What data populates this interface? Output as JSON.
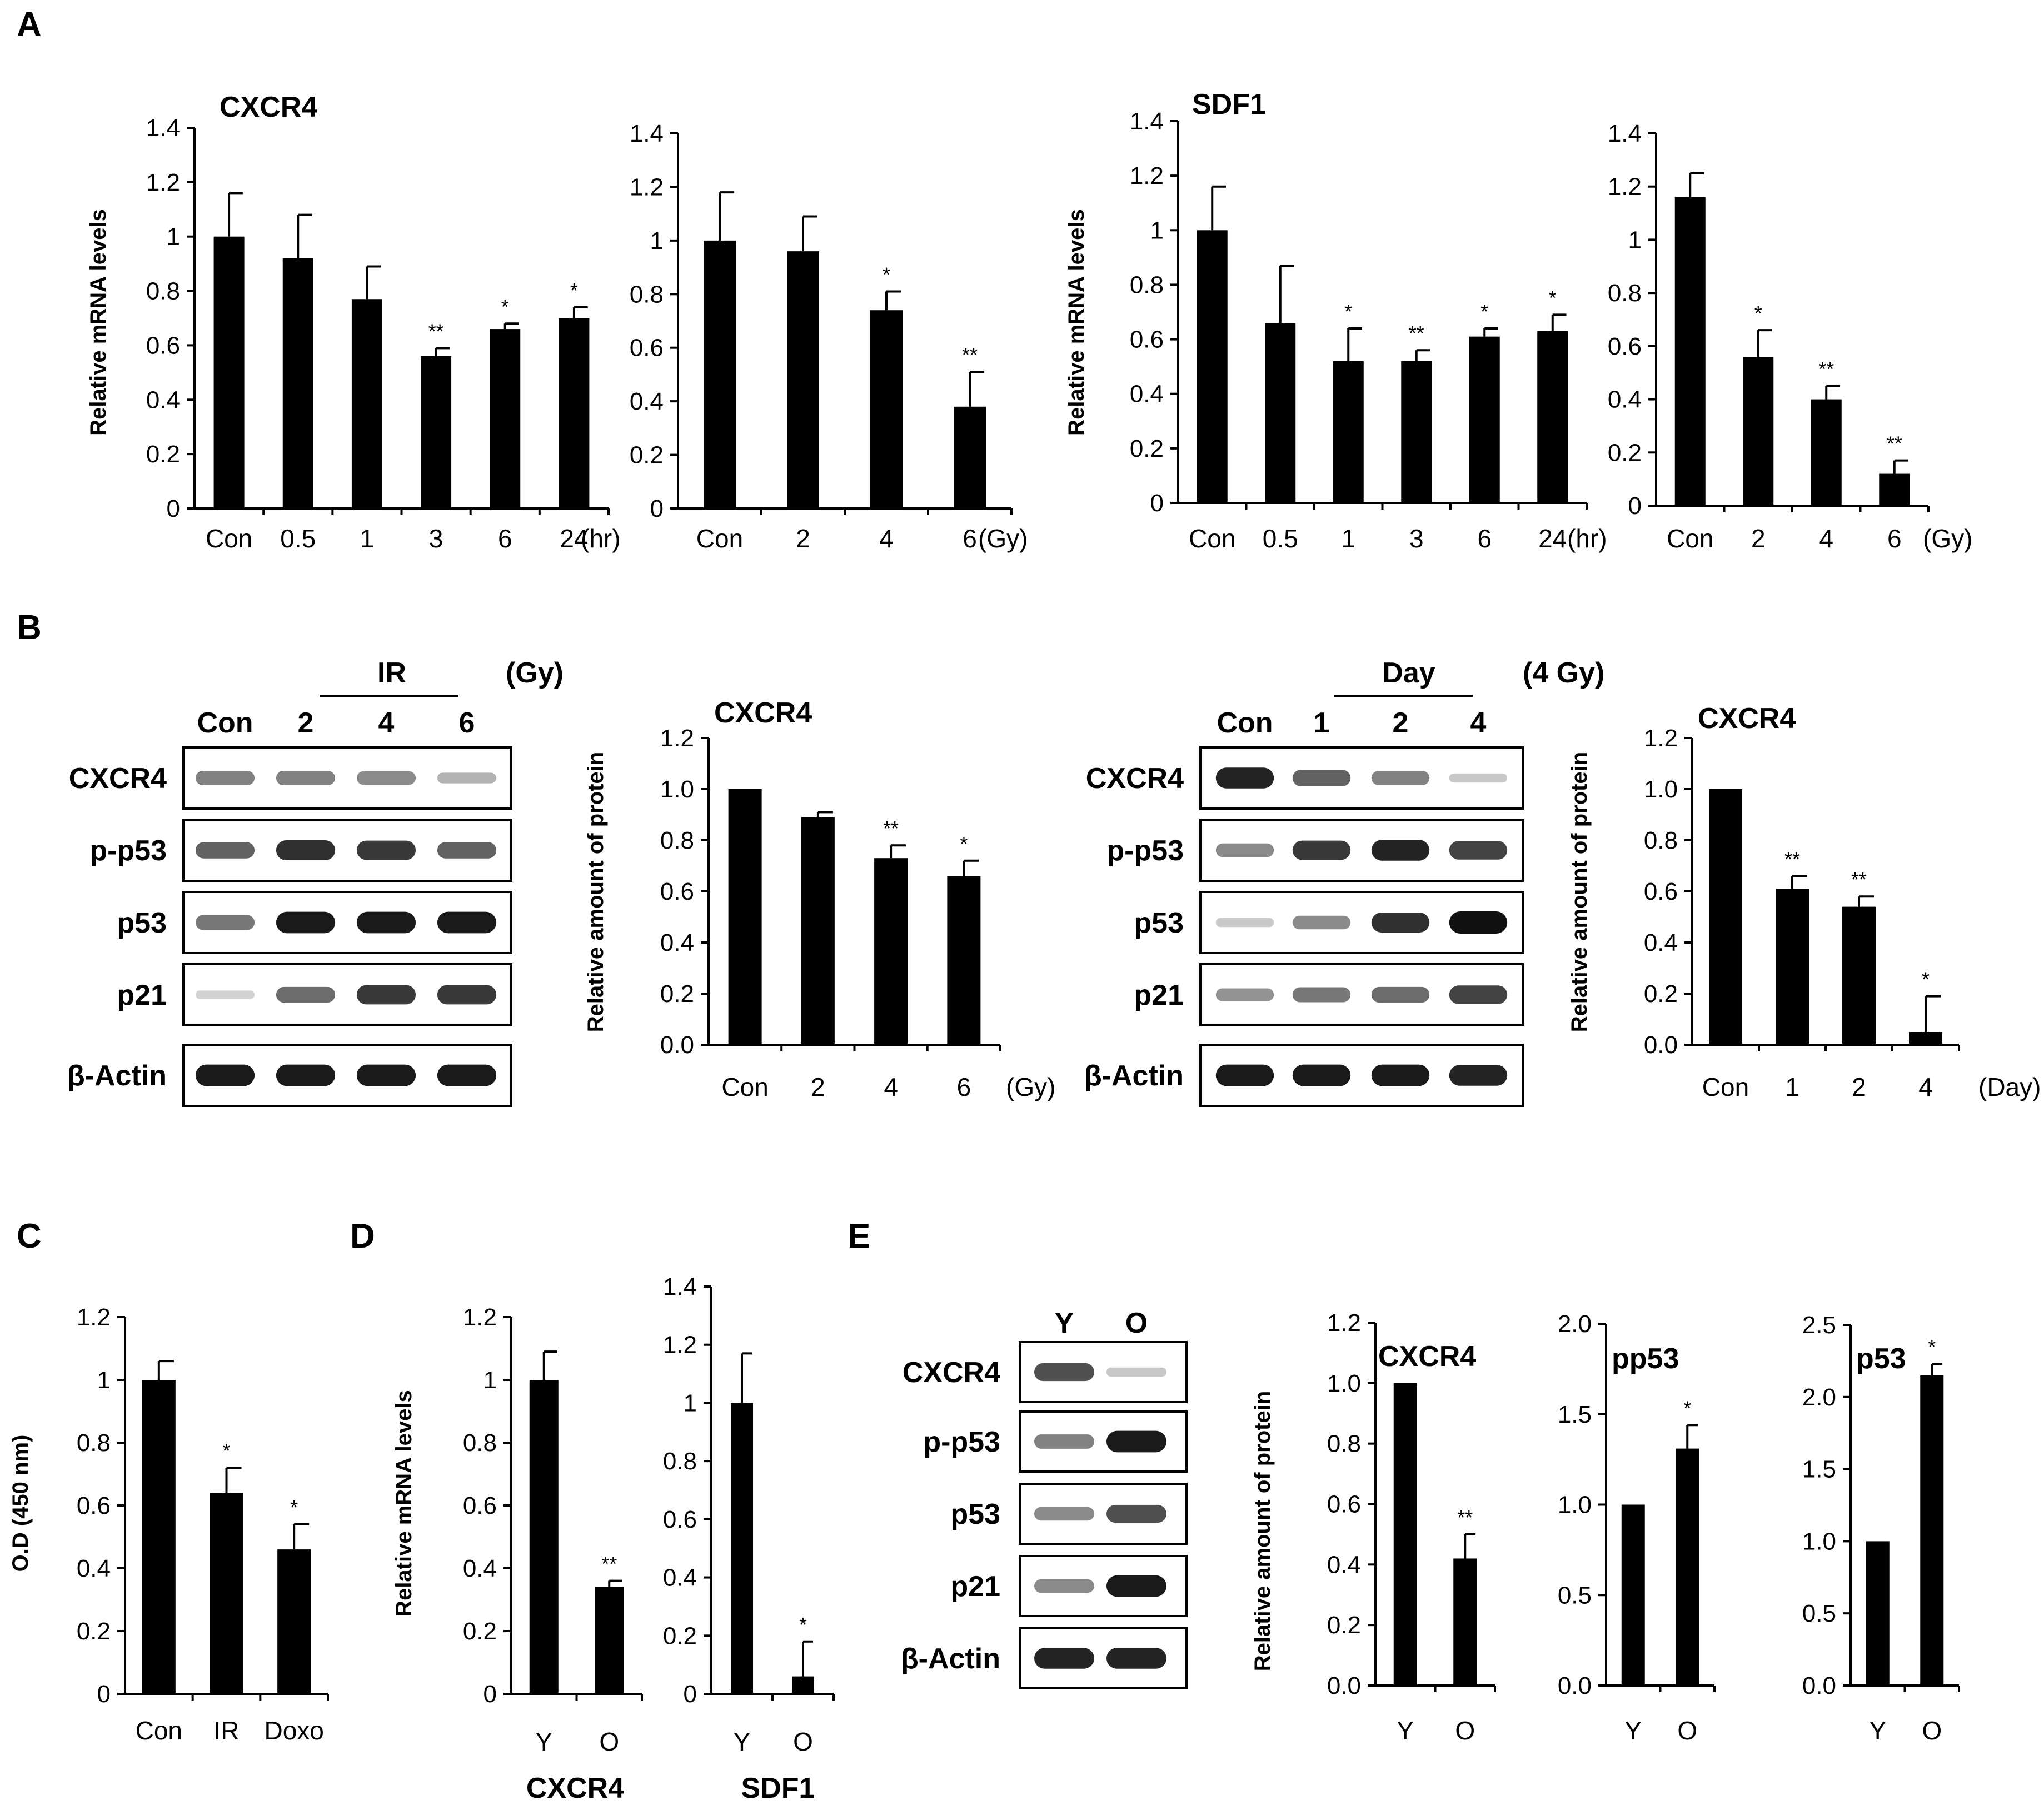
{
  "panel_labels": [
    "A",
    "B",
    "C",
    "D",
    "E"
  ],
  "chart_data": [
    {
      "id": "A1",
      "type": "bar",
      "title": "CXCR4",
      "ylabel": "Relative mRNA levels",
      "xunit": "(hr)",
      "categories": [
        "Con",
        "0.5",
        "1",
        "3",
        "6",
        "24"
      ],
      "values": [
        1.0,
        0.92,
        0.77,
        0.56,
        0.66,
        0.7
      ],
      "errors": [
        0.16,
        0.16,
        0.12,
        0.03,
        0.02,
        0.04
      ],
      "significance": [
        "",
        "",
        "",
        "**",
        "*",
        "*"
      ],
      "ylim": [
        0,
        1.4
      ],
      "yticks": [
        "0",
        "0.2",
        "0.4",
        "0.6",
        "0.8",
        "1",
        "1.2",
        "1.4"
      ]
    },
    {
      "id": "A2",
      "type": "bar",
      "title": "",
      "ylabel": "",
      "xunit": "(Gy)",
      "categories": [
        "Con",
        "2",
        "4",
        "6"
      ],
      "values": [
        1.0,
        0.96,
        0.74,
        0.38
      ],
      "errors": [
        0.18,
        0.13,
        0.07,
        0.13
      ],
      "significance": [
        "",
        "",
        "*",
        "**"
      ],
      "ylim": [
        0,
        1.4
      ],
      "yticks": [
        "0",
        "0.2",
        "0.4",
        "0.6",
        "0.8",
        "1",
        "1.2",
        "1.4"
      ]
    },
    {
      "id": "A3",
      "type": "bar",
      "title": "SDF1",
      "ylabel": "Relative mRNA levels",
      "xunit": "(hr)",
      "categories": [
        "Con",
        "0.5",
        "1",
        "3",
        "6",
        "24"
      ],
      "values": [
        1.0,
        0.66,
        0.52,
        0.52,
        0.61,
        0.63
      ],
      "errors": [
        0.16,
        0.21,
        0.12,
        0.04,
        0.03,
        0.06
      ],
      "significance": [
        "",
        "",
        "*",
        "**",
        "*",
        "*"
      ],
      "ylim": [
        0,
        1.4
      ],
      "yticks": [
        "0",
        "0.2",
        "0.4",
        "0.6",
        "0.8",
        "1",
        "1.2",
        "1.4"
      ]
    },
    {
      "id": "A4",
      "type": "bar",
      "title": "",
      "ylabel": "",
      "xunit": "(Gy)",
      "categories": [
        "Con",
        "2",
        "4",
        "6"
      ],
      "values": [
        1.16,
        0.56,
        0.4,
        0.12
      ],
      "errors": [
        0.09,
        0.1,
        0.05,
        0.05
      ],
      "significance": [
        "",
        "*",
        "**",
        "**"
      ],
      "ylim": [
        0,
        1.4
      ],
      "yticks": [
        "0",
        "0.2",
        "0.4",
        "0.6",
        "0.8",
        "1",
        "1.2",
        "1.4"
      ]
    },
    {
      "id": "B1",
      "type": "bar",
      "title": "CXCR4",
      "ylabel": "Relative amount of protein",
      "xunit": "(Gy)",
      "categories": [
        "Con",
        "2",
        "4",
        "6"
      ],
      "values": [
        1.0,
        0.89,
        0.73,
        0.66
      ],
      "errors": [
        0.0,
        0.02,
        0.05,
        0.06
      ],
      "significance": [
        "",
        "",
        "**",
        "*"
      ],
      "ylim": [
        0,
        1.2
      ],
      "yticks": [
        "0.0",
        "0.2",
        "0.4",
        "0.6",
        "0.8",
        "1.0",
        "1.2"
      ]
    },
    {
      "id": "B2",
      "type": "bar",
      "title": "CXCR4",
      "ylabel": "Relative amount of protein",
      "xunit": "(Day)",
      "categories": [
        "Con",
        "1",
        "2",
        "4"
      ],
      "values": [
        1.0,
        0.61,
        0.54,
        0.05
      ],
      "errors": [
        0.0,
        0.05,
        0.04,
        0.14
      ],
      "significance": [
        "",
        "**",
        "**",
        "*"
      ],
      "ylim": [
        0,
        1.2
      ],
      "yticks": [
        "0.0",
        "0.2",
        "0.4",
        "0.6",
        "0.8",
        "1.0",
        "1.2"
      ]
    },
    {
      "id": "C1",
      "type": "bar",
      "title": "",
      "ylabel": "O.D (450 nm)",
      "xunit": "",
      "categories": [
        "Con",
        "IR",
        "Doxo"
      ],
      "values": [
        1.0,
        0.64,
        0.46
      ],
      "errors": [
        0.06,
        0.08,
        0.08
      ],
      "significance": [
        "",
        "*",
        "*"
      ],
      "ylim": [
        0,
        1.2
      ],
      "yticks": [
        "0",
        "0.2",
        "0.4",
        "0.6",
        "0.8",
        "1",
        "1.2"
      ]
    },
    {
      "id": "D1",
      "type": "bar",
      "title": "",
      "ylabel": "Relative mRNA levels",
      "xunit": "",
      "group_label": "CXCR4",
      "categories": [
        "Y",
        "O"
      ],
      "values": [
        1.0,
        0.34
      ],
      "errors": [
        0.09,
        0.02
      ],
      "significance": [
        "",
        "**"
      ],
      "ylim": [
        0,
        1.2
      ],
      "yticks": [
        "0",
        "0.2",
        "0.4",
        "0.6",
        "0.8",
        "1",
        "1.2"
      ]
    },
    {
      "id": "D2",
      "type": "bar",
      "title": "",
      "ylabel": "",
      "xunit": "",
      "group_label": "SDF1",
      "categories": [
        "Y",
        "O"
      ],
      "values": [
        1.0,
        0.06
      ],
      "errors": [
        0.17,
        0.12
      ],
      "significance": [
        "",
        "*"
      ],
      "ylim": [
        0,
        1.4
      ],
      "yticks": [
        "0",
        "0.2",
        "0.4",
        "0.6",
        "0.8",
        "1",
        "1.2",
        "1.4"
      ]
    },
    {
      "id": "E1",
      "type": "bar",
      "title": "CXCR4",
      "ylabel": "Relative amount of protein",
      "xunit": "",
      "categories": [
        "Y",
        "O"
      ],
      "values": [
        1.0,
        0.42
      ],
      "errors": [
        0.0,
        0.08
      ],
      "significance": [
        "",
        "**"
      ],
      "ylim": [
        0,
        1.2
      ],
      "yticks": [
        "0.0",
        "0.2",
        "0.4",
        "0.6",
        "0.8",
        "1.0",
        "1.2"
      ]
    },
    {
      "id": "E2",
      "type": "bar",
      "title": "pp53",
      "ylabel": "",
      "xunit": "",
      "categories": [
        "Y",
        "O"
      ],
      "values": [
        1.0,
        1.31
      ],
      "errors": [
        0.0,
        0.13
      ],
      "significance": [
        "",
        "*"
      ],
      "ylim": [
        0,
        2.0
      ],
      "yticks": [
        "0.0",
        "0.5",
        "1.0",
        "1.5",
        "2.0"
      ]
    },
    {
      "id": "E3",
      "type": "bar",
      "title": "p53",
      "ylabel": "",
      "xunit": "",
      "categories": [
        "Y",
        "O"
      ],
      "values": [
        1.0,
        2.15
      ],
      "errors": [
        0.0,
        0.08
      ],
      "significance": [
        "",
        "*"
      ],
      "ylim": [
        0,
        2.5
      ],
      "yticks": [
        "0.0",
        "0.5",
        "1.0",
        "1.5",
        "2.0",
        "2.5"
      ]
    }
  ],
  "blots": [
    {
      "id": "blotB1",
      "header": "IR",
      "unit": "(Gy)",
      "lanes": [
        "Con",
        "2",
        "4",
        "6"
      ],
      "rows": [
        "CXCR4",
        "p-p53",
        "p53",
        "p21",
        "β-Actin"
      ],
      "intensity": [
        [
          0.45,
          0.45,
          0.4,
          0.2
        ],
        [
          0.6,
          0.85,
          0.8,
          0.6
        ],
        [
          0.5,
          0.95,
          0.95,
          0.95
        ],
        [
          0.05,
          0.55,
          0.8,
          0.8
        ],
        [
          0.95,
          0.95,
          0.95,
          0.95
        ]
      ]
    },
    {
      "id": "blotB2",
      "header": "Day",
      "unit": "(4 Gy)",
      "lanes": [
        "Con",
        "1",
        "2",
        "4"
      ],
      "rows": [
        "CXCR4",
        "p-p53",
        "p53",
        "p21",
        "β-Actin"
      ],
      "intensity": [
        [
          0.9,
          0.6,
          0.45,
          0.1
        ],
        [
          0.4,
          0.8,
          0.9,
          0.75
        ],
        [
          0.1,
          0.4,
          0.85,
          1.0
        ],
        [
          0.35,
          0.5,
          0.55,
          0.75
        ],
        [
          0.95,
          0.95,
          0.95,
          0.9
        ]
      ]
    },
    {
      "id": "blotE",
      "header": "",
      "unit": "",
      "lanes": [
        "Y",
        "O"
      ],
      "rows": [
        "CXCR4",
        "p-p53",
        "p53",
        "p21",
        "β-Actin"
      ],
      "intensity": [
        [
          0.7,
          0.1
        ],
        [
          0.45,
          0.95
        ],
        [
          0.4,
          0.7
        ],
        [
          0.4,
          0.95
        ],
        [
          0.9,
          0.9
        ]
      ]
    }
  ]
}
